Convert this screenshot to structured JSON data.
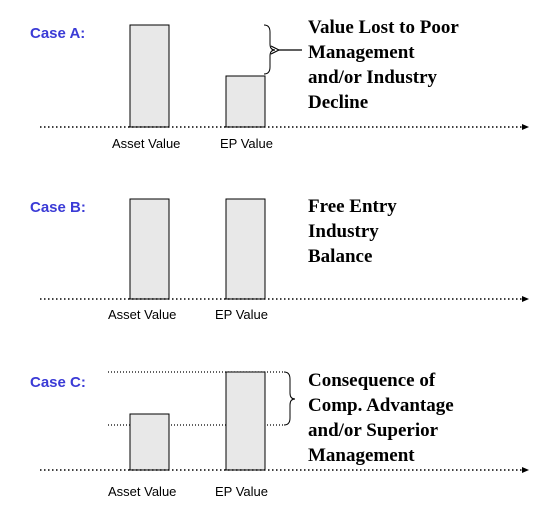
{
  "colors": {
    "case_label": "#3b3bd6",
    "bar_fill": "#e8e8e8",
    "line": "#000000"
  },
  "cases": [
    {
      "label": "Case A:",
      "bars": [
        {
          "label": "Asset Value",
          "level": 1.0
        },
        {
          "label": "EP Value",
          "level": 0.5
        }
      ],
      "note": [
        "Value Lost to Poor",
        "Management",
        "and/or Industry",
        "Decline"
      ],
      "arrow_icon": "left-arrow-icon"
    },
    {
      "label": "Case B:",
      "bars": [
        {
          "label": "Asset Value",
          "level": 1.0
        },
        {
          "label": "EP Value",
          "level": 1.0
        }
      ],
      "note": [
        "Free Entry",
        "Industry",
        "Balance"
      ]
    },
    {
      "label": "Case C:",
      "bars": [
        {
          "label": "Asset Value",
          "level": 0.57
        },
        {
          "label": "EP Value",
          "level": 1.0
        }
      ],
      "note": [
        "Consequence of",
        "Comp. Advantage",
        "and/or Superior",
        "Management"
      ]
    }
  ]
}
